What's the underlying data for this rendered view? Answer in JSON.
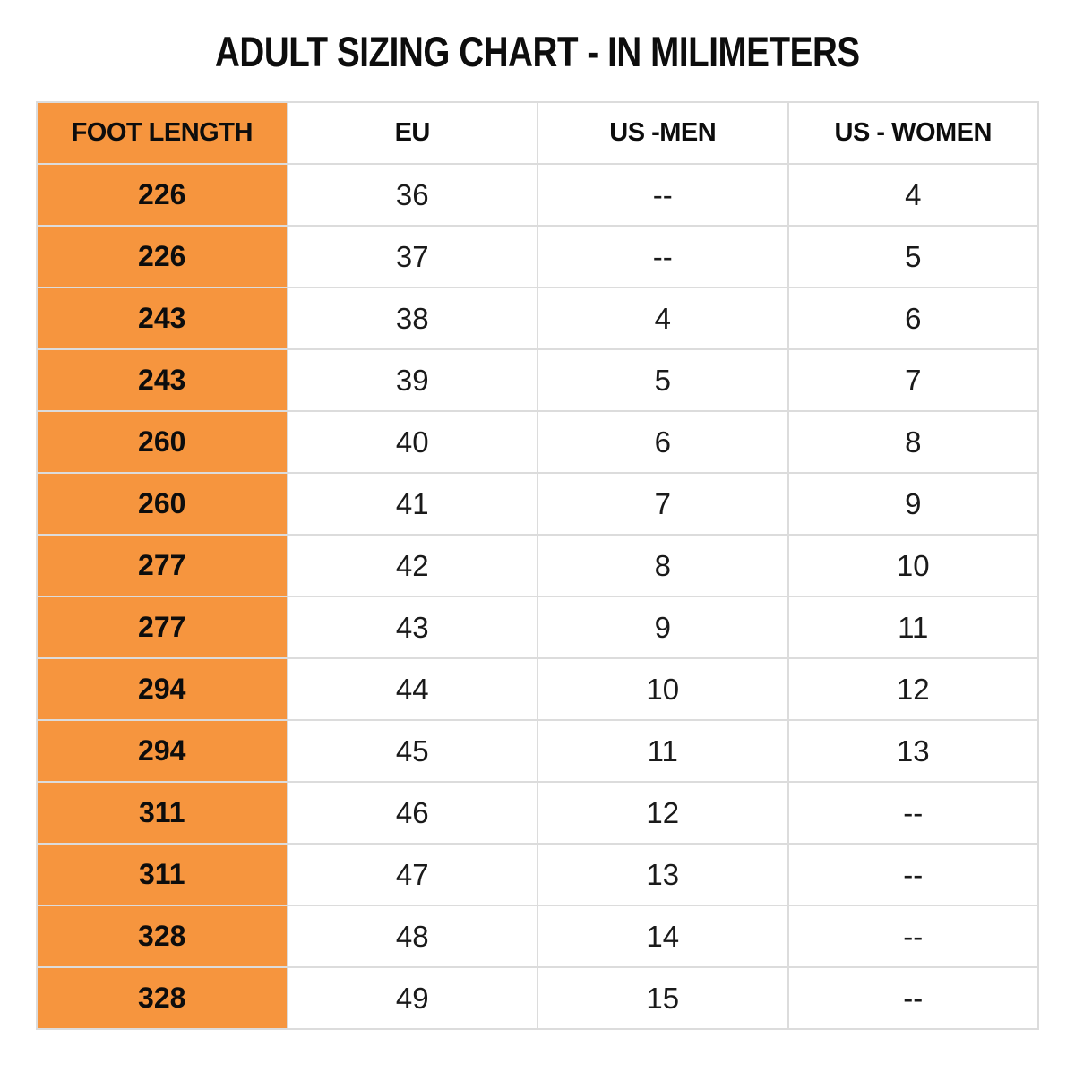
{
  "title": "ADULT SIZING CHART - IN MILIMETERS",
  "colors": {
    "accent_orange": "#f6953e",
    "grid_line": "#dcdcdc",
    "text": "#0d0d0d",
    "background": "#ffffff"
  },
  "chart_data": {
    "type": "table",
    "title": "ADULT SIZING CHART - IN MILIMETERS",
    "columns": [
      "FOOT LENGTH",
      "EU",
      "US -MEN",
      "US - WOMEN"
    ],
    "rows": [
      [
        "226",
        "36",
        "--",
        "4"
      ],
      [
        "226",
        "37",
        "--",
        "5"
      ],
      [
        "243",
        "38",
        "4",
        "6"
      ],
      [
        "243",
        "39",
        "5",
        "7"
      ],
      [
        "260",
        "40",
        "6",
        "8"
      ],
      [
        "260",
        "41",
        "7",
        "9"
      ],
      [
        "277",
        "42",
        "8",
        "10"
      ],
      [
        "277",
        "43",
        "9",
        "11"
      ],
      [
        "294",
        "44",
        "10",
        "12"
      ],
      [
        "294",
        "45",
        "11",
        "13"
      ],
      [
        "311",
        "46",
        "12",
        "--"
      ],
      [
        "311",
        "47",
        "13",
        "--"
      ],
      [
        "328",
        "48",
        "14",
        "--"
      ],
      [
        "328",
        "49",
        "15",
        "--"
      ]
    ],
    "layout_hints": {
      "header_column_highlight": "FOOT LENGTH column filled orange",
      "grid": true,
      "units": "millimeters"
    }
  }
}
